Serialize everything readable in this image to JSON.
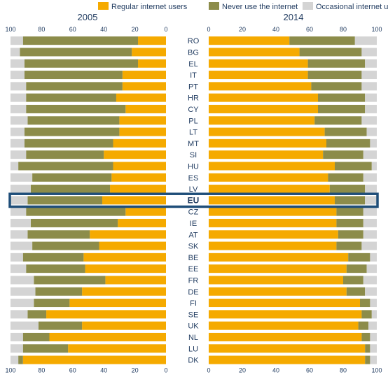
{
  "chart_data": {
    "type": "bar",
    "orientation": "horizontal-stacked",
    "legend": [
      {
        "name": "Regular internet users",
        "color": "#f5aa00"
      },
      {
        "name": "Never use the internet",
        "color": "#8c8c4a"
      },
      {
        "name": "Occasional internet users",
        "color": "#d4d4d4"
      }
    ],
    "panels": [
      {
        "title": "2005"
      },
      {
        "title": "2014"
      }
    ],
    "x_ticks": [
      100,
      80,
      60,
      40,
      20,
      0
    ],
    "x_ticks_right": [
      0,
      20,
      40,
      60,
      80,
      100
    ],
    "xlim": [
      0,
      100
    ],
    "highlight": "EU",
    "categories": [
      "RO",
      "BG",
      "EL",
      "IT",
      "PT",
      "HR",
      "CY",
      "PL",
      "LT",
      "MT",
      "SI",
      "HU",
      "ES",
      "LV",
      "EU",
      "CZ",
      "IE",
      "AT",
      "SK",
      "BE",
      "EE",
      "FR",
      "DE",
      "FI",
      "SE",
      "UK",
      "NL",
      "LU",
      "DK"
    ],
    "series_2005": [
      {
        "name": "Regular internet users",
        "values": [
          18,
          22,
          18,
          28,
          28,
          32,
          26,
          30,
          30,
          34,
          40,
          34,
          35,
          36,
          41,
          26,
          31,
          49,
          43,
          53,
          52,
          39,
          54,
          62,
          77,
          54,
          75,
          63,
          92
        ]
      },
      {
        "name": "Never use the internet",
        "values": [
          74,
          72,
          73,
          63,
          62,
          58,
          64,
          59,
          61,
          57,
          50,
          61,
          51,
          51,
          48,
          64,
          56,
          40,
          43,
          39,
          38,
          46,
          30,
          23,
          12,
          28,
          17,
          29,
          3
        ]
      },
      {
        "name": "Occasional internet users",
        "values": [
          8,
          6,
          9,
          9,
          10,
          10,
          10,
          11,
          9,
          9,
          10,
          5,
          14,
          13,
          11,
          10,
          13,
          11,
          14,
          8,
          10,
          15,
          16,
          15,
          11,
          18,
          8,
          8,
          5
        ]
      }
    ],
    "series_2014": [
      {
        "name": "Regular internet users",
        "values": [
          48,
          54,
          59,
          59,
          61,
          65,
          65,
          63,
          69,
          70,
          68,
          75,
          71,
          72,
          75,
          76,
          76,
          77,
          76,
          83,
          82,
          80,
          82,
          90,
          91,
          89,
          91,
          93,
          93
        ]
      },
      {
        "name": "Never use the internet",
        "values": [
          39,
          37,
          34,
          32,
          30,
          28,
          28,
          28,
          25,
          26,
          24,
          22,
          21,
          21,
          18,
          16,
          16,
          15,
          15,
          13,
          12,
          12,
          11,
          6,
          6,
          6,
          5,
          3,
          3
        ]
      },
      {
        "name": "Occasional internet users",
        "values": [
          13,
          9,
          7,
          9,
          9,
          7,
          7,
          9,
          6,
          4,
          8,
          3,
          8,
          7,
          7,
          8,
          8,
          8,
          9,
          4,
          6,
          8,
          7,
          4,
          3,
          5,
          4,
          4,
          4
        ]
      }
    ]
  }
}
